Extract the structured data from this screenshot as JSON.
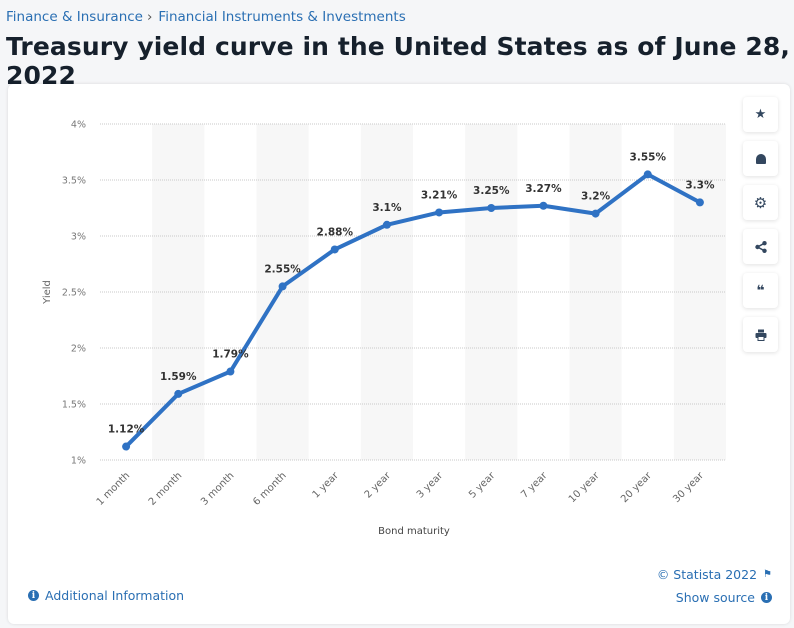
{
  "breadcrumb": {
    "items": [
      "Finance & Insurance",
      "Financial Instruments & Investments"
    ],
    "separator": "›"
  },
  "page_title": "Treasury yield curve in the United States as of June 28, 2022",
  "toolbar": {
    "buttons": [
      {
        "name": "favorite",
        "icon": "star-icon",
        "glyph": "★"
      },
      {
        "name": "notification",
        "icon": "bell-icon",
        "glyph": "🔔"
      },
      {
        "name": "settings",
        "icon": "gear-icon",
        "glyph": "⚙"
      },
      {
        "name": "share",
        "icon": "share-icon",
        "glyph": "<"
      },
      {
        "name": "cite",
        "icon": "quote-icon",
        "glyph": "❝"
      },
      {
        "name": "print",
        "icon": "print-icon",
        "glyph": "⎙"
      }
    ]
  },
  "footer": {
    "additional_info": "Additional Information",
    "copyright": "© Statista 2022",
    "show_source": "Show source"
  },
  "colors": {
    "line": "#2f72c4",
    "link": "#2a6fb3",
    "band": "#f7f7f7"
  },
  "chart_data": {
    "type": "line",
    "title": "Treasury yield curve in the United States as of June 28, 2022",
    "xlabel": "Bond maturity",
    "ylabel": "Yield",
    "categories": [
      "1 month",
      "2 month",
      "3 month",
      "6 month",
      "1 year",
      "2 year",
      "3 year",
      "5 year",
      "7 year",
      "10 year",
      "20 year",
      "30 year"
    ],
    "values": [
      1.12,
      1.59,
      1.79,
      2.55,
      2.88,
      3.1,
      3.21,
      3.25,
      3.27,
      3.2,
      3.55,
      3.3
    ],
    "data_labels": [
      "1.12%",
      "1.59%",
      "1.79%",
      "2.55%",
      "2.88%",
      "3.1%",
      "3.21%",
      "3.25%",
      "3.27%",
      "3.2%",
      "3.55%",
      "3.3%"
    ],
    "yticks": [
      1,
      1.5,
      2,
      2.5,
      3,
      3.5,
      4
    ],
    "ytick_labels": [
      "1%",
      "1.5%",
      "2%",
      "2.5%",
      "3%",
      "3.5%",
      "4%"
    ],
    "ylim": [
      1,
      4
    ],
    "grid": true,
    "legend": "none"
  }
}
